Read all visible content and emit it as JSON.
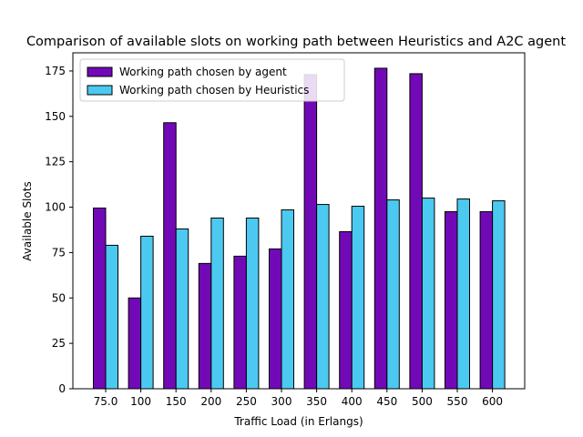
{
  "chart_data": {
    "type": "bar",
    "title": "Comparison of available slots on working path between Heuristics and A2C agent",
    "xlabel": "Traffic Load (in Erlangs)",
    "ylabel": "Available Slots",
    "categories": [
      "75.0",
      "100",
      "150",
      "200",
      "250",
      "300",
      "350",
      "400",
      "450",
      "500",
      "550",
      "600"
    ],
    "series": [
      {
        "name": "Working path chosen by agent",
        "color": "#7209b7",
        "values": [
          99.5,
          50,
          146.5,
          69,
          73,
          77,
          173,
          86.5,
          176.5,
          173.5,
          97.5,
          97.5
        ]
      },
      {
        "name": "Working path chosen by Heuristics",
        "color": "#4cc9f0",
        "values": [
          79,
          84,
          88,
          94,
          94,
          98.5,
          101.5,
          100.5,
          104,
          105,
          104.5,
          103.5
        ]
      }
    ],
    "ylim": [
      0,
      185
    ],
    "yticks": [
      0,
      25,
      50,
      75,
      100,
      125,
      150,
      175
    ],
    "legend": "upper-left",
    "grid": false
  }
}
